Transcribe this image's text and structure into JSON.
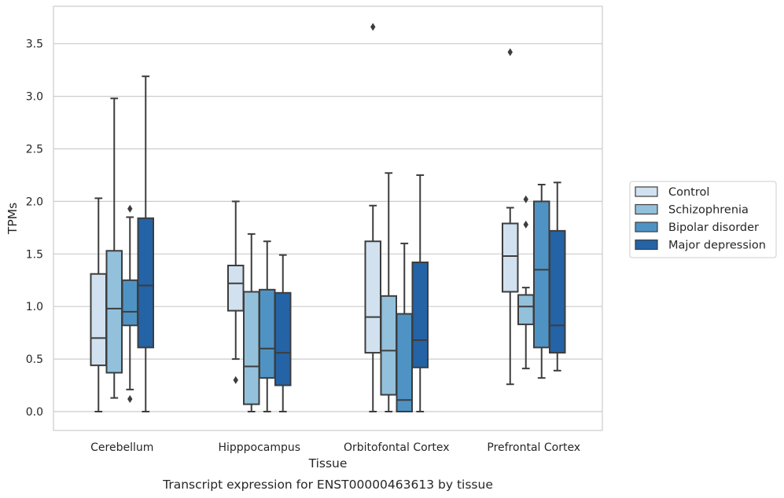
{
  "chart_data": {
    "type": "box",
    "title": "Transcript expression for ENST00000463613 by tissue",
    "xlabel": "Tissue",
    "ylabel": "TPMs",
    "ylim": [
      -0.18,
      3.88
    ],
    "yticks": [
      "0.0",
      "0.5",
      "1.0",
      "1.5",
      "2.0",
      "2.5",
      "3.0",
      "3.5"
    ],
    "grid": true,
    "legend_position": "right",
    "categories": [
      "Cerebellum",
      "Hipppocampus",
      "Orbitofontal Cortex",
      "Prefrontal Cortex"
    ],
    "series": [
      {
        "name": "Control",
        "color": "#d1e1ef",
        "boxes": [
          {
            "whislo": 0.0,
            "q1": 0.44,
            "median": 0.7,
            "q3": 1.31,
            "whishi": 2.03,
            "fliers": []
          },
          {
            "whislo": 0.5,
            "q1": 0.96,
            "median": 1.22,
            "q3": 1.39,
            "whishi": 2.0,
            "fliers": [
              0.3
            ]
          },
          {
            "whislo": 0.0,
            "q1": 0.56,
            "median": 0.9,
            "q3": 1.62,
            "whishi": 1.96,
            "fliers": [
              3.66
            ]
          },
          {
            "whislo": 0.26,
            "q1": 1.14,
            "median": 1.48,
            "q3": 1.79,
            "whishi": 1.94,
            "fliers": [
              3.42
            ]
          }
        ]
      },
      {
        "name": "Schizophrenia",
        "color": "#93c1dc",
        "boxes": [
          {
            "whislo": 0.13,
            "q1": 0.37,
            "median": 0.98,
            "q3": 1.53,
            "whishi": 2.98,
            "fliers": []
          },
          {
            "whislo": 0.0,
            "q1": 0.07,
            "median": 0.43,
            "q3": 1.14,
            "whishi": 1.69,
            "fliers": []
          },
          {
            "whislo": 0.0,
            "q1": 0.16,
            "median": 0.58,
            "q3": 1.1,
            "whishi": 2.27,
            "fliers": []
          },
          {
            "whislo": 0.41,
            "q1": 0.83,
            "median": 1.0,
            "q3": 1.11,
            "whishi": 1.18,
            "fliers": [
              1.78,
              2.02
            ]
          }
        ]
      },
      {
        "name": "Bipolar disorder",
        "color": "#4f93c4",
        "boxes": [
          {
            "whislo": 0.21,
            "q1": 0.82,
            "median": 0.95,
            "q3": 1.25,
            "whishi": 1.85,
            "fliers": [
              1.93,
              0.12
            ]
          },
          {
            "whislo": 0.0,
            "q1": 0.32,
            "median": 0.6,
            "q3": 1.16,
            "whishi": 1.62,
            "fliers": []
          },
          {
            "whislo": 0.0,
            "q1": 0.0,
            "median": 0.11,
            "q3": 0.93,
            "whishi": 1.6,
            "fliers": []
          },
          {
            "whislo": 0.32,
            "q1": 0.61,
            "median": 1.35,
            "q3": 2.0,
            "whishi": 2.16,
            "fliers": []
          }
        ]
      },
      {
        "name": "Major depression",
        "color": "#2463a6",
        "boxes": [
          {
            "whislo": 0.0,
            "q1": 0.61,
            "median": 1.2,
            "q3": 1.84,
            "whishi": 3.19,
            "fliers": []
          },
          {
            "whislo": 0.0,
            "q1": 0.25,
            "median": 0.56,
            "q3": 1.13,
            "whishi": 1.49,
            "fliers": []
          },
          {
            "whislo": 0.0,
            "q1": 0.42,
            "median": 0.68,
            "q3": 1.42,
            "whishi": 2.25,
            "fliers": []
          },
          {
            "whislo": 0.39,
            "q1": 0.56,
            "median": 0.82,
            "q3": 1.72,
            "whishi": 2.18,
            "fliers": []
          }
        ]
      }
    ]
  },
  "colors": {
    "grid": "#cccccc",
    "frame": "#cccccc",
    "box_edge": "#3d3d3d",
    "text": "#262626"
  }
}
